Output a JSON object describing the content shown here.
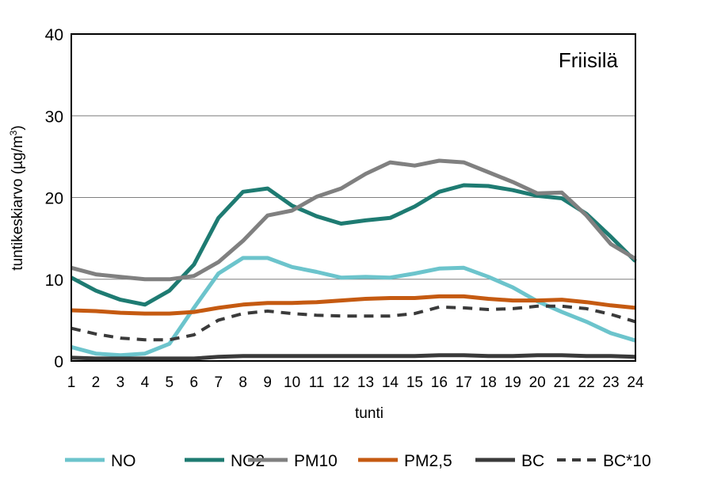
{
  "chart_data": {
    "type": "line",
    "annotation": "Friisilä",
    "xlabel": "tunti",
    "ylabel": "tuntikeskiarvo (µg/m",
    "ylabel_sup": "3",
    "ylabel_end": ")",
    "ylim": [
      0,
      40
    ],
    "yticks": [
      "0",
      "10",
      "20",
      "30",
      "40"
    ],
    "x": [
      "1",
      "2",
      "3",
      "4",
      "5",
      "6",
      "7",
      "8",
      "9",
      "10",
      "11",
      "12",
      "13",
      "14",
      "15",
      "16",
      "17",
      "18",
      "19",
      "20",
      "21",
      "22",
      "23",
      "24"
    ],
    "grid": "horizontal",
    "legend": "bottom",
    "series": [
      {
        "name": "NO",
        "color": "#6cc4cc",
        "style": "solid",
        "values": [
          1.7,
          0.9,
          0.7,
          0.9,
          2.1,
          6.5,
          10.7,
          12.6,
          12.6,
          11.5,
          10.9,
          10.2,
          10.3,
          10.2,
          10.7,
          11.3,
          11.4,
          10.3,
          9.0,
          7.3,
          6.0,
          4.8,
          3.4,
          2.5
        ]
      },
      {
        "name": "NO2",
        "color": "#1e7b72",
        "style": "solid",
        "values": [
          10.2,
          8.6,
          7.5,
          6.9,
          8.6,
          11.8,
          17.5,
          20.7,
          21.1,
          19.0,
          17.7,
          16.8,
          17.2,
          17.5,
          18.9,
          20.7,
          21.5,
          21.4,
          20.9,
          20.2,
          19.9,
          18.0,
          15.2,
          12.2
        ]
      },
      {
        "name": "PM10",
        "color": "#808080",
        "style": "solid",
        "values": [
          11.4,
          10.6,
          10.3,
          10.0,
          10.0,
          10.4,
          12.1,
          14.7,
          17.8,
          18.4,
          20.1,
          21.1,
          22.9,
          24.3,
          23.9,
          24.5,
          24.3,
          23.1,
          21.9,
          20.5,
          20.6,
          17.8,
          14.3,
          12.5
        ]
      },
      {
        "name": "PM2,5",
        "color": "#c55a11",
        "style": "solid",
        "values": [
          6.2,
          6.1,
          5.9,
          5.8,
          5.8,
          6.0,
          6.5,
          6.9,
          7.1,
          7.1,
          7.2,
          7.4,
          7.6,
          7.7,
          7.7,
          7.9,
          7.9,
          7.6,
          7.4,
          7.4,
          7.5,
          7.2,
          6.8,
          6.5
        ]
      },
      {
        "name": "BC",
        "color": "#3a3a3a",
        "style": "solid",
        "values": [
          0.4,
          0.3,
          0.3,
          0.3,
          0.3,
          0.3,
          0.5,
          0.6,
          0.6,
          0.6,
          0.6,
          0.6,
          0.6,
          0.6,
          0.6,
          0.7,
          0.7,
          0.6,
          0.6,
          0.7,
          0.7,
          0.6,
          0.6,
          0.5
        ]
      },
      {
        "name": "BC*10",
        "color": "#3a3a3a",
        "style": "dashed",
        "values": [
          4.0,
          3.3,
          2.8,
          2.6,
          2.6,
          3.2,
          5.0,
          5.8,
          6.1,
          5.8,
          5.6,
          5.5,
          5.5,
          5.5,
          5.8,
          6.6,
          6.5,
          6.3,
          6.4,
          6.7,
          6.7,
          6.4,
          5.7,
          4.8
        ]
      }
    ]
  }
}
